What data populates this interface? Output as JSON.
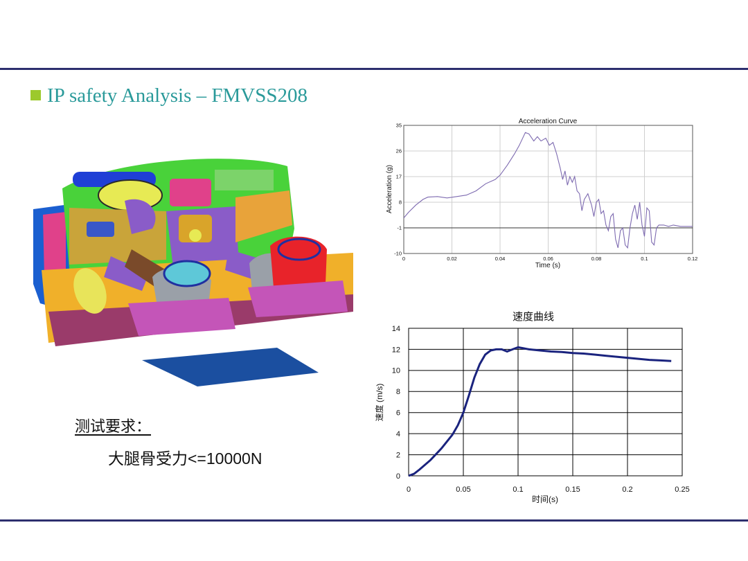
{
  "slide": {
    "title": "IP safety Analysis – FMVSS208",
    "accent_color": "#2a9a9a",
    "bullet_color": "#9cc92c",
    "rule_color": "#2d2f6e"
  },
  "requirements": {
    "heading": "测试要求：",
    "item": "大腿骨受力<=10000N"
  },
  "figure": {
    "icon": "instrument-panel-fe-model-icon"
  },
  "chart_data": [
    {
      "type": "line",
      "title": "Acceleration Curve",
      "xlabel": "Time (s)",
      "ylabel": "Acceleration (g)",
      "xlim": [
        0,
        0.12
      ],
      "ylim": [
        -10,
        35
      ],
      "xticks": [
        "0",
        "0.02",
        "0.04",
        "0.06",
        "0.08",
        "0.1",
        "0.12"
      ],
      "yticks": [
        "35",
        "26",
        "17",
        "8",
        "-1",
        "-10"
      ],
      "xtick_values": [
        0,
        0.02,
        0.04,
        0.06,
        0.08,
        0.1,
        0.12
      ],
      "ytick_values": [
        35,
        26,
        17,
        8,
        -1,
        -10
      ],
      "grid": true,
      "reference_line_y": -1,
      "line_color": "#7d6ab0",
      "series": [
        {
          "x": [
            0,
            0.002,
            0.005,
            0.008,
            0.01,
            0.014,
            0.018,
            0.022,
            0.026,
            0.03,
            0.034,
            0.038,
            0.04,
            0.043,
            0.046,
            0.048,
            0.0505,
            0.052,
            0.054,
            0.0555,
            0.057,
            0.059,
            0.0605,
            0.062,
            0.0635,
            0.065,
            0.066,
            0.067,
            0.068,
            0.069,
            0.07,
            0.071,
            0.072,
            0.073,
            0.074,
            0.075,
            0.0765,
            0.078,
            0.079,
            0.08,
            0.081,
            0.082,
            0.083,
            0.084,
            0.085,
            0.086,
            0.087,
            0.088,
            0.089,
            0.09,
            0.091,
            0.092,
            0.093,
            0.094,
            0.095,
            0.096,
            0.097,
            0.098,
            0.099,
            0.1,
            0.101,
            0.102,
            0.103,
            0.104,
            0.105,
            0.106,
            0.108,
            0.11,
            0.112,
            0.115,
            0.12
          ],
          "y": [
            2.5,
            4.5,
            7,
            9,
            9.8,
            10,
            9.5,
            10,
            10.5,
            12,
            14.5,
            16,
            17.5,
            21,
            25,
            28,
            32.5,
            32,
            29.5,
            31,
            29.5,
            30.5,
            28,
            29,
            25,
            20,
            16,
            19,
            14,
            17,
            15,
            17,
            12,
            11,
            5,
            9,
            11,
            7,
            3,
            8,
            9,
            4,
            5,
            0,
            -2,
            3,
            4,
            -5,
            -8,
            -2,
            -1,
            -7,
            -8,
            -1,
            4,
            7,
            2,
            8,
            0,
            -4,
            6,
            5,
            -6,
            -7,
            -1,
            0,
            0,
            -0.5,
            0,
            -0.5,
            -0.5
          ]
        }
      ]
    },
    {
      "type": "line",
      "title": "速度曲线",
      "xlabel": "时间(s)",
      "ylabel": "速度 (m/s)",
      "xlim": [
        0,
        0.25
      ],
      "ylim": [
        0,
        14
      ],
      "xticks": [
        "0",
        "0.05",
        "0.1",
        "0.15",
        "0.2",
        "0.25"
      ],
      "yticks": [
        "14",
        "12",
        "10",
        "8",
        "6",
        "4",
        "2",
        "0"
      ],
      "xtick_values": [
        0,
        0.05,
        0.1,
        0.15,
        0.2,
        0.25
      ],
      "ytick_values": [
        14,
        12,
        10,
        8,
        6,
        4,
        2,
        0
      ],
      "grid": true,
      "line_color": "#1a237e",
      "series": [
        {
          "x": [
            0,
            0.005,
            0.01,
            0.02,
            0.03,
            0.04,
            0.045,
            0.05,
            0.055,
            0.06,
            0.065,
            0.07,
            0.075,
            0.08,
            0.085,
            0.09,
            0.095,
            0.1,
            0.105,
            0.11,
            0.12,
            0.13,
            0.14,
            0.15,
            0.16,
            0.17,
            0.18,
            0.19,
            0.2,
            0.21,
            0.22,
            0.23,
            0.24
          ],
          "y": [
            0,
            0.2,
            0.6,
            1.5,
            2.6,
            3.9,
            4.8,
            6,
            7.6,
            9.3,
            10.6,
            11.5,
            11.9,
            12.0,
            12.0,
            11.8,
            12.0,
            12.2,
            12.1,
            12.0,
            11.9,
            11.8,
            11.75,
            11.65,
            11.6,
            11.5,
            11.4,
            11.3,
            11.2,
            11.1,
            11.0,
            10.95,
            10.9
          ]
        }
      ]
    }
  ]
}
